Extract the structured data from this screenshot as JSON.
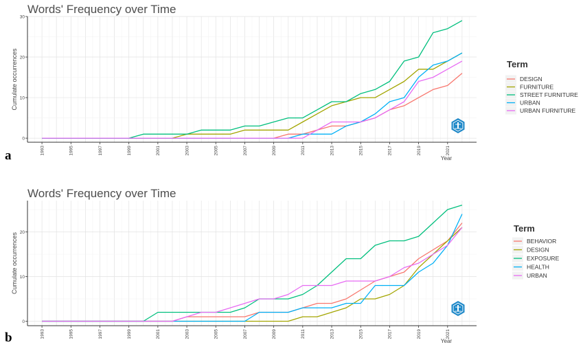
{
  "colors": {
    "DESIGN": "#F8766D",
    "FURNITURE": "#A3A500",
    "STREET FURNITURE": "#00BF7D",
    "URBAN": "#00B0F6",
    "URBAN FURNITURE": "#E76BF3",
    "BEHAVIOR": "#F8766D",
    "EXPOSURE": "#00BF7D",
    "HEALTH": "#00B0F6",
    "logo_blue": "#1E88C8"
  },
  "chart_data": [
    {
      "type": "line",
      "panel_label": "a",
      "title": "Words' Frequency over Time",
      "xlabel": "Year",
      "ylabel": "Cumulate occurrences",
      "x_tick_labels": [
        "1993",
        "1995",
        "1997",
        "1999",
        "2001",
        "2003",
        "2005",
        "2007",
        "2009",
        "2011",
        "2013",
        "2015",
        "2017",
        "2019",
        "2021"
      ],
      "y_tick_labels": [
        "0",
        "10",
        "20",
        "30"
      ],
      "xlim": [
        1992,
        2023
      ],
      "ylim": [
        -1,
        30
      ],
      "grid": true,
      "legend_title": "Term",
      "legend_position": "right",
      "x": [
        1993,
        1994,
        1995,
        1996,
        1997,
        1998,
        1999,
        2000,
        2001,
        2002,
        2003,
        2004,
        2005,
        2006,
        2007,
        2008,
        2009,
        2010,
        2011,
        2012,
        2013,
        2014,
        2015,
        2016,
        2017,
        2018,
        2019,
        2020,
        2021,
        2022
      ],
      "series": [
        {
          "name": "DESIGN",
          "color_key": "DESIGN",
          "values": [
            0,
            0,
            0,
            0,
            0,
            0,
            0,
            0,
            0,
            0,
            0,
            0,
            0,
            0,
            0,
            0,
            0,
            1,
            1,
            2,
            3,
            3,
            4,
            5,
            7,
            8,
            10,
            12,
            13,
            16
          ]
        },
        {
          "name": "FURNITURE",
          "color_key": "FURNITURE",
          "values": [
            0,
            0,
            0,
            0,
            0,
            0,
            0,
            0,
            0,
            0,
            1,
            1,
            1,
            1,
            2,
            2,
            2,
            2,
            4,
            6,
            8,
            9,
            10,
            10,
            12,
            14,
            17,
            17,
            19,
            21
          ]
        },
        {
          "name": "STREET FURNITURE",
          "color_key": "STREET FURNITURE",
          "values": [
            0,
            0,
            0,
            0,
            0,
            0,
            0,
            1,
            1,
            1,
            1,
            2,
            2,
            2,
            3,
            3,
            4,
            5,
            5,
            7,
            9,
            9,
            11,
            12,
            14,
            19,
            20,
            26,
            27,
            29
          ]
        },
        {
          "name": "URBAN",
          "color_key": "URBAN",
          "values": [
            0,
            0,
            0,
            0,
            0,
            0,
            0,
            0,
            0,
            0,
            0,
            0,
            0,
            0,
            0,
            0,
            0,
            0,
            1,
            1,
            1,
            3,
            4,
            6,
            9,
            10,
            15,
            18,
            19,
            21
          ]
        },
        {
          "name": "URBAN FURNITURE",
          "color_key": "URBAN FURNITURE",
          "values": [
            0,
            0,
            0,
            0,
            0,
            0,
            0,
            0,
            0,
            0,
            0,
            0,
            0,
            0,
            0,
            0,
            0,
            0,
            0,
            2,
            4,
            4,
            4,
            5,
            7,
            9,
            14,
            15,
            17,
            19
          ]
        }
      ]
    },
    {
      "type": "line",
      "panel_label": "b",
      "title": "Words' Frequency over Time",
      "xlabel": "Year",
      "ylabel": "Cumulate occurrences",
      "x_tick_labels": [
        "1993",
        "1995",
        "1997",
        "1999",
        "2001",
        "2003",
        "2005",
        "2007",
        "2009",
        "2011",
        "2013",
        "2015",
        "2017",
        "2019",
        "2021"
      ],
      "y_tick_labels": [
        "0",
        "10",
        "20"
      ],
      "xlim": [
        1992,
        2023
      ],
      "ylim": [
        -1,
        27
      ],
      "grid": true,
      "legend_title": "Term",
      "legend_position": "right",
      "x": [
        1993,
        1994,
        1995,
        1996,
        1997,
        1998,
        1999,
        2000,
        2001,
        2002,
        2003,
        2004,
        2005,
        2006,
        2007,
        2008,
        2009,
        2010,
        2011,
        2012,
        2013,
        2014,
        2015,
        2016,
        2017,
        2018,
        2019,
        2020,
        2021,
        2022
      ],
      "series": [
        {
          "name": "BEHAVIOR",
          "color_key": "BEHAVIOR",
          "values": [
            0,
            0,
            0,
            0,
            0,
            0,
            0,
            0,
            0,
            0,
            1,
            1,
            1,
            1,
            1,
            2,
            2,
            2,
            3,
            4,
            4,
            5,
            7,
            9,
            10,
            11,
            14,
            16,
            18,
            22
          ]
        },
        {
          "name": "DESIGN",
          "color_key": "FURNITURE",
          "values": [
            0,
            0,
            0,
            0,
            0,
            0,
            0,
            0,
            0,
            0,
            0,
            0,
            0,
            0,
            0,
            0,
            0,
            0,
            1,
            1,
            2,
            3,
            5,
            5,
            6,
            8,
            12,
            15,
            18,
            21
          ]
        },
        {
          "name": "EXPOSURE",
          "color_key": "EXPOSURE",
          "values": [
            0,
            0,
            0,
            0,
            0,
            0,
            0,
            0,
            2,
            2,
            2,
            2,
            2,
            2,
            3,
            5,
            5,
            5,
            6,
            8,
            11,
            14,
            14,
            17,
            18,
            18,
            19,
            22,
            25,
            26
          ]
        },
        {
          "name": "HEALTH",
          "color_key": "HEALTH",
          "values": [
            0,
            0,
            0,
            0,
            0,
            0,
            0,
            0,
            0,
            0,
            0,
            0,
            0,
            0,
            0,
            2,
            2,
            2,
            3,
            3,
            3,
            4,
            4,
            8,
            8,
            8,
            11,
            13,
            17,
            24
          ]
        },
        {
          "name": "URBAN",
          "color_key": "URBAN FURNITURE",
          "values": [
            0,
            0,
            0,
            0,
            0,
            0,
            0,
            0,
            0,
            0,
            1,
            2,
            2,
            3,
            4,
            5,
            5,
            6,
            8,
            8,
            8,
            9,
            9,
            9,
            10,
            12,
            13,
            15,
            17,
            21
          ]
        }
      ]
    }
  ]
}
